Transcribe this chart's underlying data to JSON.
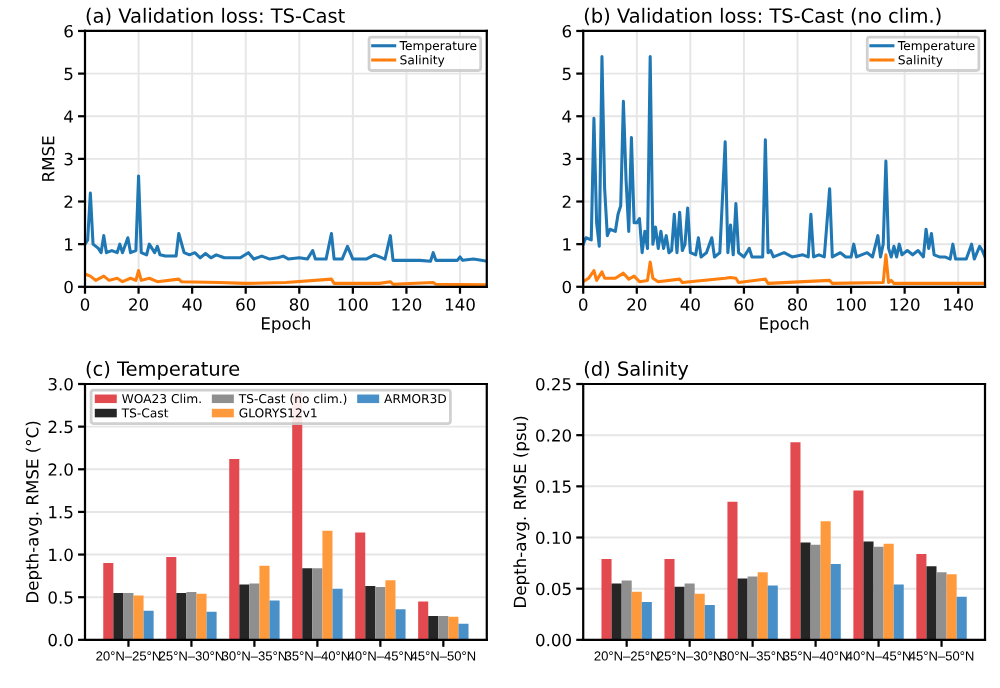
{
  "chart_data": [
    {
      "type": "line",
      "title": "(a) Validation loss: TS-Cast",
      "xlabel": "Epoch",
      "ylabel": "RMSE",
      "xlim": [
        0,
        150
      ],
      "ylim": [
        0,
        6
      ],
      "xticks": [
        0,
        20,
        40,
        60,
        80,
        100,
        120,
        140
      ],
      "yticks": [
        0,
        1,
        2,
        3,
        4,
        5,
        6
      ],
      "grid": true,
      "legend": "top right",
      "series": [
        {
          "name": "Temperature",
          "color": "#1f77b4",
          "x": [
            0,
            1,
            2,
            3,
            5,
            6,
            7,
            8,
            10,
            12,
            13,
            14,
            16,
            17,
            19,
            20,
            21,
            23,
            24,
            26,
            27,
            28,
            30,
            34,
            35,
            37,
            39,
            41,
            43,
            45,
            47,
            49,
            52,
            58,
            61,
            63,
            66,
            69,
            72,
            74,
            76,
            80,
            83,
            85,
            86,
            90,
            92,
            93,
            96,
            98,
            100,
            105,
            108,
            110,
            112,
            114,
            115,
            120,
            125,
            129,
            130,
            131,
            135,
            139,
            140,
            141,
            145,
            148,
            150
          ],
          "values": [
            1.0,
            1.1,
            2.2,
            1.0,
            0.9,
            0.8,
            1.2,
            0.8,
            0.85,
            0.8,
            1.0,
            0.8,
            1.15,
            0.8,
            0.85,
            2.6,
            0.8,
            0.75,
            1.0,
            0.8,
            0.95,
            0.75,
            0.72,
            0.72,
            1.25,
            0.8,
            0.75,
            0.8,
            0.68,
            0.78,
            0.68,
            0.75,
            0.68,
            0.68,
            0.8,
            0.65,
            0.72,
            0.65,
            0.68,
            0.72,
            0.65,
            0.68,
            0.65,
            0.85,
            0.65,
            0.65,
            1.25,
            0.65,
            0.65,
            0.95,
            0.65,
            0.65,
            0.75,
            0.7,
            0.65,
            1.2,
            0.62,
            0.62,
            0.62,
            0.6,
            0.8,
            0.62,
            0.62,
            0.62,
            0.7,
            0.62,
            0.65,
            0.62,
            0.6
          ]
        },
        {
          "name": "Salinity",
          "color": "#ff7f0e",
          "x": [
            0,
            2,
            4,
            7,
            9,
            12,
            14,
            17,
            19,
            20,
            21,
            24,
            27,
            35,
            36,
            50,
            60,
            75,
            92,
            93,
            110,
            114,
            115,
            130,
            131,
            150
          ],
          "values": [
            0.3,
            0.25,
            0.15,
            0.25,
            0.15,
            0.2,
            0.12,
            0.2,
            0.15,
            0.38,
            0.15,
            0.2,
            0.12,
            0.18,
            0.12,
            0.1,
            0.08,
            0.1,
            0.18,
            0.08,
            0.08,
            0.12,
            0.06,
            0.1,
            0.06,
            0.05
          ]
        }
      ]
    },
    {
      "type": "line",
      "title": "(b) Validation loss: TS-Cast (no clim.)",
      "xlabel": "Epoch",
      "xlim": [
        0,
        150
      ],
      "ylim": [
        0,
        6
      ],
      "xticks": [
        0,
        20,
        40,
        60,
        80,
        100,
        120,
        140
      ],
      "yticks": [
        0,
        1,
        2,
        3,
        4,
        5,
        6
      ],
      "grid": true,
      "legend": "top right",
      "series": [
        {
          "name": "Temperature",
          "color": "#1f77b4",
          "x": [
            0,
            1,
            3,
            4,
            5,
            6,
            7,
            8,
            9,
            10,
            12,
            13,
            14,
            15,
            16,
            17,
            18,
            19,
            20,
            21,
            22,
            23,
            24,
            25,
            26,
            27,
            28,
            29,
            30,
            31,
            32,
            33,
            34,
            35,
            36,
            37,
            38,
            39,
            40,
            42,
            43,
            44,
            46,
            48,
            49,
            51,
            53,
            54,
            55,
            56,
            57,
            58,
            60,
            62,
            63,
            67,
            68,
            69,
            70,
            71,
            75,
            78,
            82,
            84,
            85,
            86,
            88,
            90,
            92,
            93,
            96,
            98,
            100,
            101,
            102,
            106,
            108,
            110,
            111,
            112,
            113,
            114,
            115,
            116,
            117,
            118,
            119,
            121,
            123,
            125,
            127,
            128,
            129,
            130,
            131,
            133,
            135,
            137,
            138,
            139,
            143,
            145,
            146,
            148,
            149,
            150
          ],
          "values": [
            1.0,
            1.15,
            1.1,
            3.95,
            1.5,
            0.95,
            5.4,
            2.3,
            1.2,
            1.35,
            1.3,
            1.7,
            1.9,
            4.35,
            2.5,
            1.3,
            3.5,
            1.5,
            1.5,
            1.6,
            0.8,
            1.3,
            0.9,
            5.4,
            1.0,
            1.4,
            0.9,
            1.3,
            0.9,
            1.2,
            0.8,
            0.85,
            1.7,
            0.8,
            1.75,
            0.85,
            1.0,
            1.85,
            0.8,
            0.75,
            1.15,
            0.7,
            0.8,
            1.15,
            0.7,
            0.8,
            3.4,
            0.8,
            1.45,
            0.75,
            1.95,
            0.8,
            0.7,
            0.9,
            0.7,
            0.7,
            3.45,
            0.8,
            0.85,
            0.7,
            0.8,
            0.7,
            0.75,
            0.7,
            1.7,
            0.7,
            0.75,
            0.7,
            2.3,
            0.7,
            0.8,
            0.7,
            0.7,
            1.0,
            0.7,
            0.8,
            0.7,
            1.2,
            0.7,
            1.0,
            2.95,
            0.9,
            0.7,
            0.95,
            0.7,
            1.0,
            0.75,
            0.85,
            0.75,
            0.85,
            0.7,
            1.35,
            0.9,
            1.25,
            0.75,
            0.7,
            0.7,
            0.65,
            1.0,
            0.65,
            0.65,
            1.0,
            0.65,
            0.95,
            0.85,
            0.7
          ]
        },
        {
          "name": "Salinity",
          "color": "#ff7f0e",
          "x": [
            0,
            2,
            4,
            5,
            7,
            8,
            12,
            15,
            17,
            19,
            21,
            24,
            25,
            26,
            28,
            36,
            37,
            53,
            55,
            57,
            58,
            68,
            69,
            92,
            93,
            112,
            113,
            114,
            115,
            116,
            150
          ],
          "values": [
            0.12,
            0.2,
            0.38,
            0.15,
            0.35,
            0.2,
            0.2,
            0.32,
            0.18,
            0.25,
            0.12,
            0.15,
            0.58,
            0.2,
            0.12,
            0.18,
            0.1,
            0.2,
            0.22,
            0.2,
            0.1,
            0.18,
            0.08,
            0.15,
            0.08,
            0.1,
            0.75,
            0.1,
            0.15,
            0.08,
            0.08
          ]
        }
      ]
    },
    {
      "type": "bar",
      "title": "(c) Temperature",
      "ylabel": "Depth-avg. RMSE (°C)",
      "categories": [
        "20°N–25°N",
        "25°N–30°N",
        "30°N–35°N",
        "35°N–40°N",
        "40°N–45°N",
        "45°N–50°N"
      ],
      "ylim": [
        0,
        3.0
      ],
      "yticks": [
        {
          "value": 0,
          "label": "0.0"
        },
        0.5,
        {
          "value": 1,
          "label": "1.0"
        },
        1.5,
        {
          "value": 2,
          "label": "2.0"
        },
        2.5,
        {
          "value": 3,
          "label": "3.0"
        }
      ],
      "grid": "y",
      "legend": "top left",
      "series": [
        {
          "name": "WOA23 Clim.",
          "color": "#e34a4f",
          "values": [
            0.9,
            0.97,
            2.12,
            2.9,
            1.26,
            0.45
          ]
        },
        {
          "name": "TS-Cast",
          "color": "#262626",
          "values": [
            0.55,
            0.55,
            0.65,
            0.84,
            0.63,
            0.28
          ]
        },
        {
          "name": "TS-Cast (no clim.)",
          "color": "#8f8f8f",
          "values": [
            0.55,
            0.56,
            0.66,
            0.84,
            0.62,
            0.28
          ]
        },
        {
          "name": "GLORYS12v1",
          "color": "#ff9a3c",
          "values": [
            0.52,
            0.54,
            0.87,
            1.28,
            0.7,
            0.27
          ]
        },
        {
          "name": "ARMOR3D",
          "color": "#4a90c8",
          "values": [
            0.34,
            0.33,
            0.46,
            0.6,
            0.36,
            0.19
          ]
        }
      ]
    },
    {
      "type": "bar",
      "title": "(d) Salinity",
      "ylabel": "Depth-avg. RMSE (psu)",
      "categories": [
        "20°N–25°N",
        "25°N–30°N",
        "30°N–35°N",
        "35°N–40°N",
        "40°N–45°N",
        "45°N–50°N"
      ],
      "ylim": [
        0,
        0.25
      ],
      "yticks": [
        {
          "value": 0,
          "label": "0.00"
        },
        0.05,
        {
          "value": 0.1,
          "label": "0.10"
        },
        0.15,
        {
          "value": 0.2,
          "label": "0.20"
        },
        0.25
      ],
      "grid": "y",
      "series": [
        {
          "color": "#e34a4f",
          "values": [
            0.079,
            0.079,
            0.135,
            0.193,
            0.146,
            0.084
          ]
        },
        {
          "color": "#262626",
          "values": [
            0.055,
            0.052,
            0.06,
            0.095,
            0.096,
            0.072
          ]
        },
        {
          "color": "#8f8f8f",
          "values": [
            0.058,
            0.055,
            0.062,
            0.093,
            0.091,
            0.066
          ]
        },
        {
          "color": "#ff9a3c",
          "values": [
            0.047,
            0.045,
            0.066,
            0.116,
            0.094,
            0.064
          ]
        },
        {
          "color": "#4a90c8",
          "values": [
            0.037,
            0.034,
            0.053,
            0.074,
            0.054,
            0.042
          ]
        }
      ]
    }
  ]
}
